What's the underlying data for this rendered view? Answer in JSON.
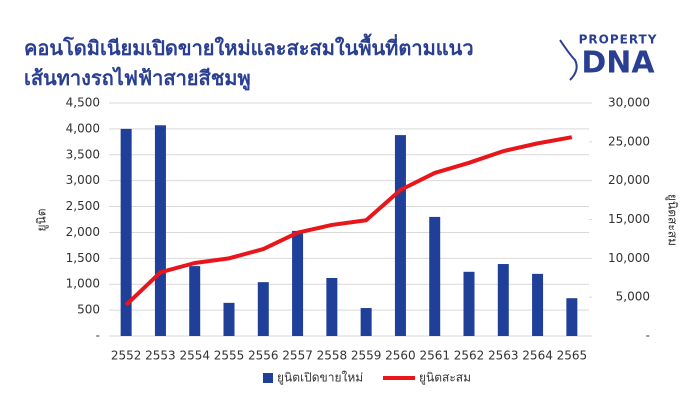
{
  "brand": {
    "top": "PROPERTY",
    "main": "DNA"
  },
  "chart_data": {
    "type": "bar-line",
    "title": [
      "คอนโดมิเนียมเปิดขายใหม่และสะสมในพื้นที่ตามแนว",
      "เส้นทางรถไฟฟ้าสายสีชมพู"
    ],
    "ylabel": "ยูนิต",
    "y2label": "ยูนิตสะสม",
    "categories": [
      "2552",
      "2553",
      "2554",
      "2555",
      "2556",
      "2557",
      "2558",
      "2559",
      "2560",
      "2561",
      "2562",
      "2563",
      "2564",
      "2565"
    ],
    "series": [
      {
        "name": "ยูนิตเปิดขายใหม่",
        "type": "bar",
        "color": "#1f3f98",
        "values": [
          4000,
          4070,
          1350,
          640,
          1040,
          2030,
          1120,
          540,
          3880,
          2300,
          1240,
          1390,
          1200,
          730
        ]
      },
      {
        "name": "ยูนิตสะสม",
        "type": "line",
        "axis": "y2",
        "color": "#e8161b",
        "values": [
          4000,
          8200,
          9400,
          10000,
          11200,
          13300,
          14300,
          14900,
          18800,
          21000,
          22300,
          23800,
          24800,
          25600
        ]
      }
    ],
    "ylim": [
      0,
      4500
    ],
    "yticks": [
      {
        "value": 0,
        "label": "-"
      },
      500,
      {
        "value": 1000,
        "label": "1,000"
      },
      {
        "value": 1500,
        "label": "1,500"
      },
      {
        "value": 2000,
        "label": "2,000"
      },
      {
        "value": 2500,
        "label": "2,500"
      },
      {
        "value": 3000,
        "label": "3,000"
      },
      {
        "value": 3500,
        "label": "3,500"
      },
      {
        "value": 4000,
        "label": "4,000"
      },
      {
        "value": 4500,
        "label": "4,500"
      }
    ],
    "y2lim": [
      0,
      30000
    ],
    "y2ticks": [
      {
        "value": 0,
        "label": "-"
      },
      {
        "value": 5000,
        "label": "5,000"
      },
      {
        "value": 10000,
        "label": "10,000"
      },
      {
        "value": 15000,
        "label": "15,000"
      },
      {
        "value": 20000,
        "label": "20,000"
      },
      {
        "value": 25000,
        "label": "25,000"
      },
      {
        "value": 30000,
        "label": "30,000"
      }
    ],
    "grid": true,
    "legend": "bottom"
  }
}
